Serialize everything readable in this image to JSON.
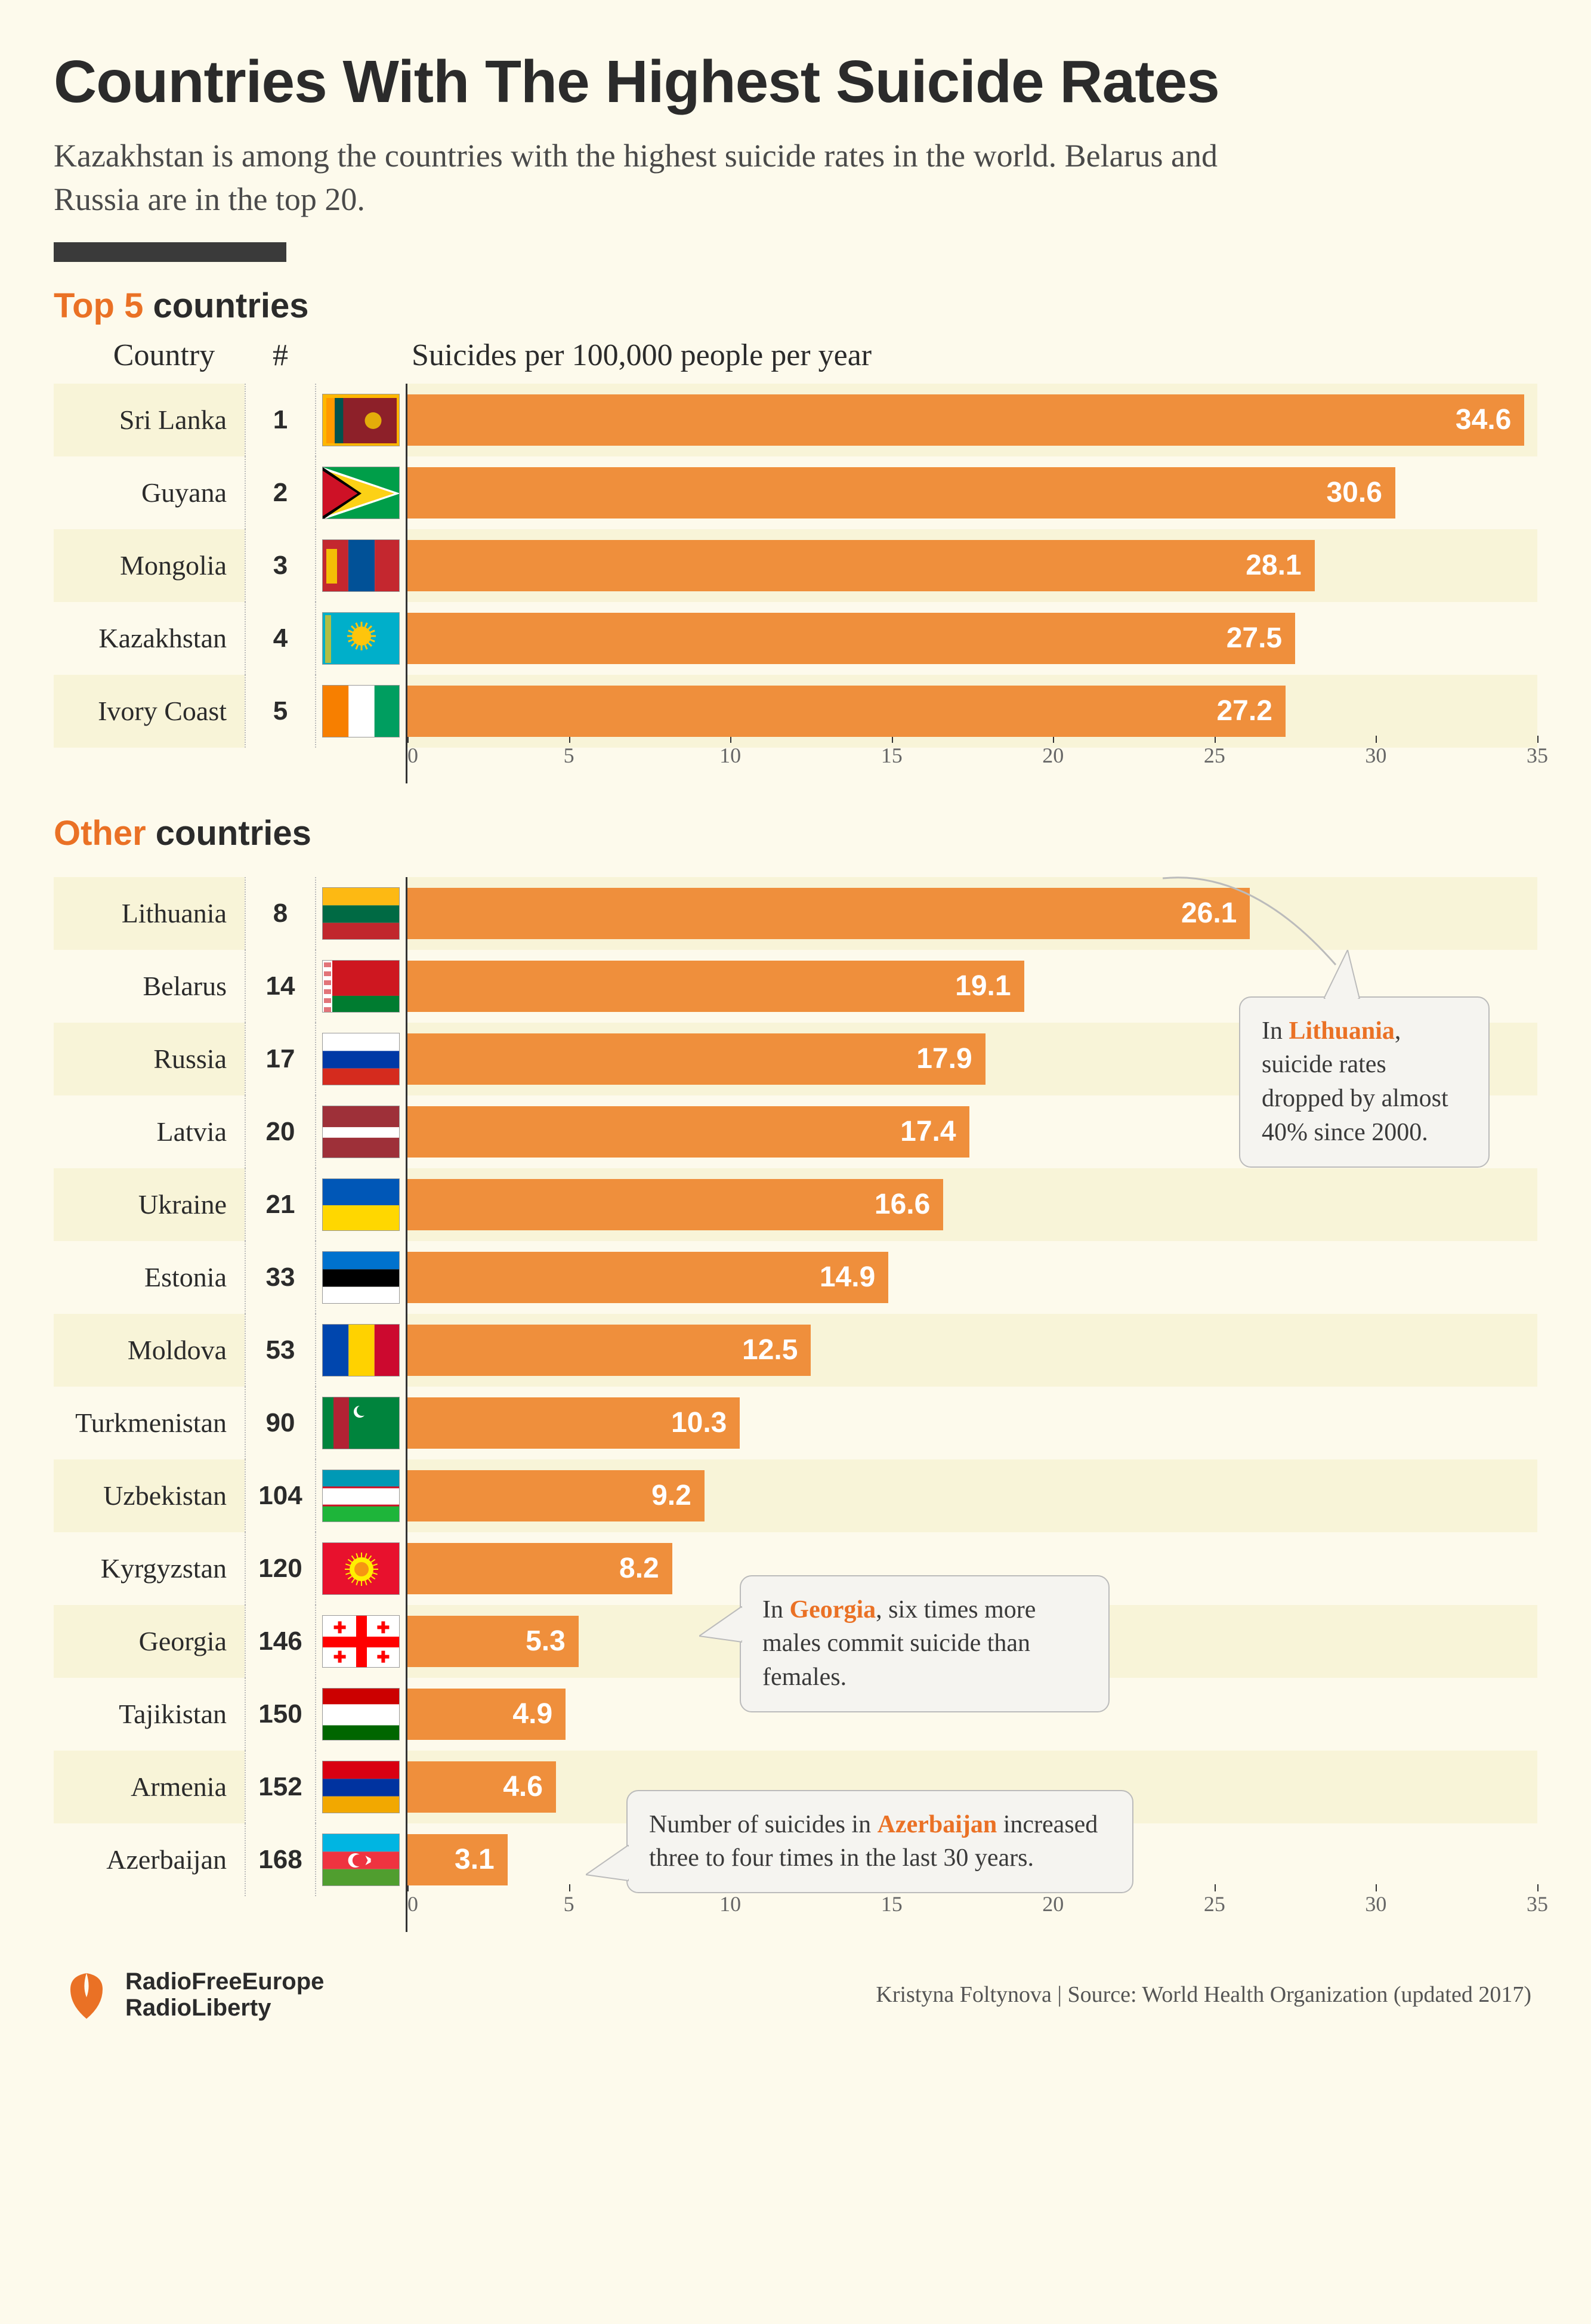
{
  "title": "Countries With The Highest Suicide Rates",
  "subtitle": "Kazakhstan is among the countries with the highest suicide rates in the world. Belarus and Russia are in the top 20.",
  "colors": {
    "background": "#fdfaec",
    "stripe": "#f8f4d8",
    "bar": "#ef8f3c",
    "accent": "#ea7125",
    "text": "#2b2b2b",
    "divider": "#3a3a3a",
    "callout_bg": "#f5f4f0",
    "callout_border": "#bbbbbb"
  },
  "headers": {
    "country": "Country",
    "rank": "#",
    "metric": "Suicides per 100,000 people per year"
  },
  "axis": {
    "min": 0,
    "max": 35,
    "ticks": [
      0,
      5,
      10,
      15,
      20,
      25,
      30,
      35
    ]
  },
  "section1": {
    "title_accent": "Top 5",
    "title_rest": " countries",
    "rows": [
      {
        "country": "Sri Lanka",
        "rank": 1,
        "value": 34.6,
        "flag": "lk"
      },
      {
        "country": "Guyana",
        "rank": 2,
        "value": 30.6,
        "flag": "gy"
      },
      {
        "country": "Mongolia",
        "rank": 3,
        "value": 28.1,
        "flag": "mn"
      },
      {
        "country": "Kazakhstan",
        "rank": 4,
        "value": 27.5,
        "flag": "kz"
      },
      {
        "country": "Ivory Coast",
        "rank": 5,
        "value": 27.2,
        "flag": "ci"
      }
    ]
  },
  "section2": {
    "title_accent": "Other",
    "title_rest": " countries",
    "rows": [
      {
        "country": "Lithuania",
        "rank": 8,
        "value": 26.1,
        "flag": "lt"
      },
      {
        "country": "Belarus",
        "rank": 14,
        "value": 19.1,
        "flag": "by"
      },
      {
        "country": "Russia",
        "rank": 17,
        "value": 17.9,
        "flag": "ru"
      },
      {
        "country": "Latvia",
        "rank": 20,
        "value": 17.4,
        "flag": "lv"
      },
      {
        "country": "Ukraine",
        "rank": 21,
        "value": 16.6,
        "flag": "ua"
      },
      {
        "country": "Estonia",
        "rank": 33,
        "value": 14.9,
        "flag": "ee"
      },
      {
        "country": "Moldova",
        "rank": 53,
        "value": 12.5,
        "flag": "md"
      },
      {
        "country": "Turkmenistan",
        "rank": 90,
        "value": 10.3,
        "flag": "tm"
      },
      {
        "country": "Uzbekistan",
        "rank": 104,
        "value": 9.2,
        "flag": "uz"
      },
      {
        "country": "Kyrgyzstan",
        "rank": 120,
        "value": 8.2,
        "flag": "kg"
      },
      {
        "country": "Georgia",
        "rank": 146,
        "value": 5.3,
        "flag": "ge"
      },
      {
        "country": "Tajikistan",
        "rank": 150,
        "value": 4.9,
        "flag": "tj"
      },
      {
        "country": "Armenia",
        "rank": 152,
        "value": 4.6,
        "flag": "am"
      },
      {
        "country": "Azerbaijan",
        "rank": 168,
        "value": 3.1,
        "flag": "az"
      }
    ]
  },
  "callouts": [
    {
      "id": "lithuania",
      "text_pre": "In ",
      "hl": "Lithuania",
      "text_post": ", suicide rates dropped by almost 40% since 2000."
    },
    {
      "id": "georgia",
      "text_pre": "In ",
      "hl": "Georgia",
      "text_post": ", six times more males commit suicide than females."
    },
    {
      "id": "azerbaijan",
      "text_pre": "Number of suicides in ",
      "hl": "Azerbaijan",
      "text_post": " increased three to four times in the last 30 years."
    }
  ],
  "footer": {
    "logo_line1": "RadioFreeEurope",
    "logo_line2": "RadioLiberty",
    "credit": "Kristyna Foltynova | Source: World Health Organization (updated 2017)"
  },
  "flags": {
    "lk": {
      "bg": "#8d2029",
      "stripes": [
        {
          "c": "#ff9900",
          "x": 0,
          "w": 0.12
        },
        {
          "c": "#00534e",
          "x": 0.12,
          "w": 0.12
        }
      ],
      "border": "#ffb700"
    },
    "gy": {
      "bg": "#009e49",
      "tri1": "#fcd116",
      "tri2": "#ce1126",
      "edge1": "#fff",
      "edge2": "#000"
    },
    "mn": {
      "bands": [
        {
          "c": "#c4272f",
          "w": 0.33
        },
        {
          "c": "#015197",
          "w": 0.34
        },
        {
          "c": "#c4272f",
          "w": 0.33
        }
      ],
      "soyombo": "#f9cf02"
    },
    "kz": {
      "bg": "#00afca",
      "sun": "#fec50c"
    },
    "ci": {
      "bands": [
        {
          "c": "#f77f00",
          "w": 0.333
        },
        {
          "c": "#ffffff",
          "w": 0.334
        },
        {
          "c": "#009e60",
          "w": 0.333
        }
      ]
    },
    "lt": {
      "hbands": [
        {
          "c": "#fdb913"
        },
        {
          "c": "#006a44"
        },
        {
          "c": "#c1272d"
        }
      ]
    },
    "by": {
      "bg": "#ce1720",
      "bottom": "#007c30",
      "ornament": "#fff"
    },
    "ru": {
      "hbands": [
        {
          "c": "#ffffff"
        },
        {
          "c": "#0039a6"
        },
        {
          "c": "#d52b1e"
        }
      ]
    },
    "lv": {
      "hbands3": [
        {
          "c": "#9e3039",
          "h": 0.4
        },
        {
          "c": "#ffffff",
          "h": 0.2
        },
        {
          "c": "#9e3039",
          "h": 0.4
        }
      ]
    },
    "ua": {
      "hbands": [
        {
          "c": "#0057b7"
        },
        {
          "c": "#ffd700"
        }
      ]
    },
    "ee": {
      "hbands": [
        {
          "c": "#0072ce"
        },
        {
          "c": "#000000"
        },
        {
          "c": "#ffffff"
        }
      ]
    },
    "md": {
      "bands": [
        {
          "c": "#0046ae",
          "w": 0.333
        },
        {
          "c": "#ffd200",
          "w": 0.334
        },
        {
          "c": "#cc092f",
          "w": 0.333
        }
      ]
    },
    "tm": {
      "bg": "#00843d",
      "stripe": "#b22234"
    },
    "uz": {
      "hbands": [
        {
          "c": "#0099b5"
        },
        {
          "c": "#ffffff"
        },
        {
          "c": "#1eb53a"
        }
      ],
      "seps": "#ce1126"
    },
    "kg": {
      "bg": "#e8112d",
      "sun": "#ffef00"
    },
    "ge": {
      "bg": "#ffffff",
      "cross": "#ff0000"
    },
    "tj": {
      "hbands3": [
        {
          "c": "#cc0000",
          "h": 0.3
        },
        {
          "c": "#ffffff",
          "h": 0.4
        },
        {
          "c": "#006600",
          "h": 0.3
        }
      ]
    },
    "am": {
      "hbands": [
        {
          "c": "#d90012"
        },
        {
          "c": "#0033a0"
        },
        {
          "c": "#f2a800"
        }
      ]
    },
    "az": {
      "hbands": [
        {
          "c": "#00b5e2"
        },
        {
          "c": "#ef3340"
        },
        {
          "c": "#509e2f"
        }
      ],
      "moon": "#fff"
    }
  }
}
